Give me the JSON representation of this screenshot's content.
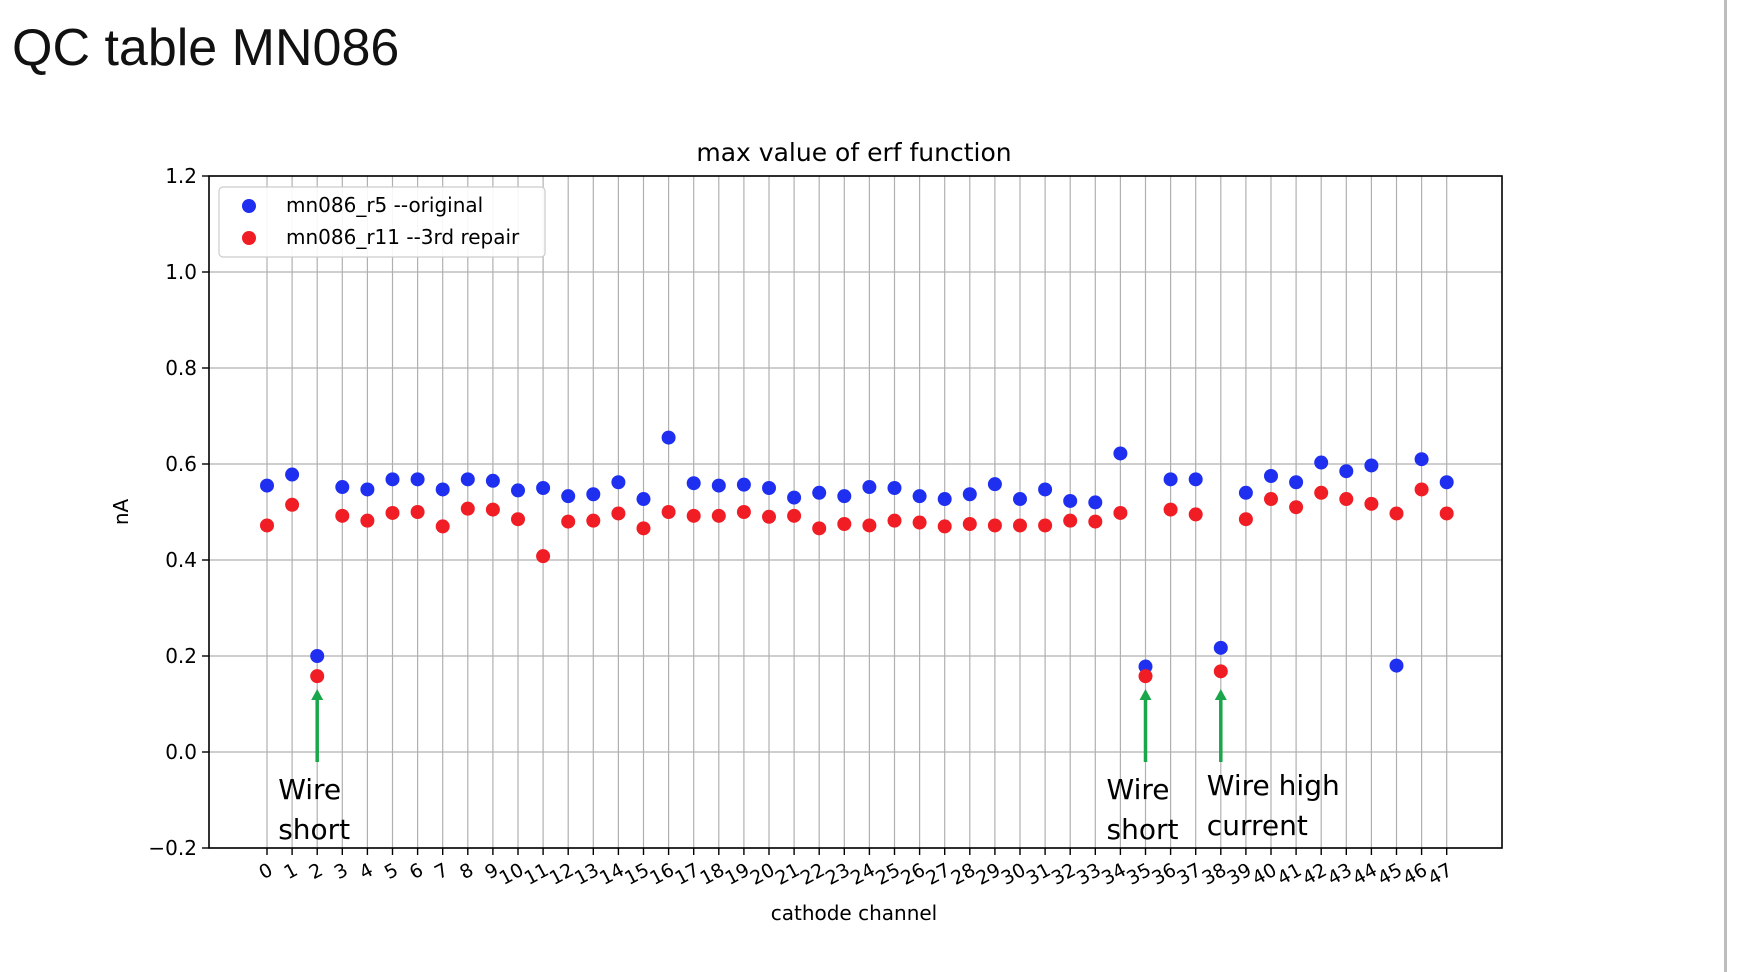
{
  "slide": {
    "title": "QC table MN086"
  },
  "chart_data": {
    "type": "scatter",
    "title": "max value of erf function",
    "xlabel": "cathode channel",
    "ylabel": "nA",
    "ylim": [
      -0.2,
      1.2
    ],
    "yticks": [
      -0.2,
      0.0,
      0.2,
      0.4,
      0.6,
      0.8,
      1.0,
      1.2
    ],
    "ytick_labels": [
      "−0.2",
      "0.0",
      "0.2",
      "0.4",
      "0.6",
      "0.8",
      "1.0",
      "1.2"
    ],
    "x": [
      0,
      1,
      2,
      3,
      4,
      5,
      6,
      7,
      8,
      9,
      10,
      11,
      12,
      13,
      14,
      15,
      16,
      17,
      18,
      19,
      20,
      21,
      22,
      23,
      24,
      25,
      26,
      27,
      28,
      29,
      30,
      31,
      32,
      33,
      34,
      35,
      36,
      37,
      38,
      39,
      40,
      41,
      42,
      43,
      44,
      45,
      46,
      47
    ],
    "xtick_labels": [
      "0",
      "1",
      "2",
      "3",
      "4",
      "5",
      "6",
      "7",
      "8",
      "9",
      "10",
      "11",
      "12",
      "13",
      "14",
      "15",
      "16",
      "17",
      "18",
      "19",
      "20",
      "21",
      "22",
      "23",
      "24",
      "25",
      "26",
      "27",
      "28",
      "29",
      "30",
      "31",
      "32",
      "33",
      "34",
      "35",
      "36",
      "37",
      "38",
      "39",
      "40",
      "41",
      "42",
      "43",
      "44",
      "45",
      "46",
      "47"
    ],
    "grid": true,
    "legend_position": "top-left",
    "series": [
      {
        "name": "mn086_r5 --original",
        "color": "#1f2ff0",
        "values": [
          0.555,
          0.578,
          0.2,
          0.552,
          0.547,
          0.568,
          0.568,
          0.547,
          0.568,
          0.565,
          0.545,
          0.55,
          0.533,
          0.537,
          0.562,
          0.527,
          0.655,
          0.56,
          0.555,
          0.557,
          0.55,
          0.53,
          0.54,
          0.533,
          0.552,
          0.55,
          0.533,
          0.527,
          0.537,
          0.558,
          0.527,
          0.547,
          0.523,
          0.52,
          0.622,
          0.178,
          0.568,
          0.568,
          0.217,
          0.54,
          0.575,
          0.562,
          0.603,
          0.585,
          0.597,
          0.18,
          0.61,
          0.562
        ]
      },
      {
        "name": "mn086_r11 --3rd repair",
        "color": "#f01d25",
        "values": [
          0.472,
          0.515,
          0.158,
          0.492,
          0.482,
          0.498,
          0.5,
          0.47,
          0.507,
          0.505,
          0.485,
          0.408,
          0.48,
          0.482,
          0.497,
          0.466,
          0.5,
          0.492,
          0.492,
          0.5,
          0.49,
          0.492,
          0.466,
          0.475,
          0.472,
          0.482,
          0.478,
          0.47,
          0.475,
          0.472,
          0.472,
          0.472,
          0.482,
          0.48,
          0.498,
          0.158,
          0.505,
          0.495,
          0.168,
          0.485,
          0.527,
          0.51,
          0.54,
          0.527,
          0.517,
          0.497,
          0.547,
          0.497
        ]
      }
    ],
    "annotations": [
      {
        "id": "a2",
        "lines": [
          "Wire",
          "short"
        ],
        "channel": 2
      },
      {
        "id": "a35",
        "lines": [
          "Wire",
          "short"
        ],
        "channel": 35
      },
      {
        "id": "a38",
        "lines": [
          "Wire high",
          "current"
        ],
        "channel": 38
      }
    ],
    "annotation_arrow_color": "#1aa64b"
  }
}
